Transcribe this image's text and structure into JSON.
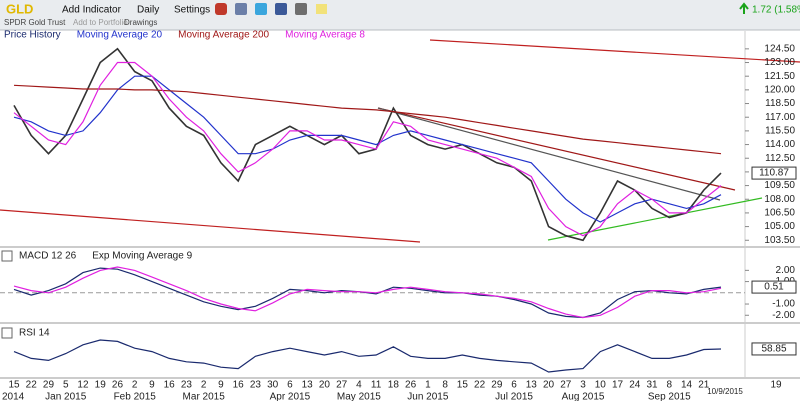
{
  "toolbar": {
    "symbol": "GLD",
    "add_indicator": "Add Indicator",
    "interval": "Daily",
    "settings": "Settings",
    "change": "1.72 (1.58%)",
    "name": "SPDR Gold Trust",
    "add_to_portfolio": "Add to Portfolio",
    "drawings": "Drawings"
  },
  "chart_data": [
    {
      "type": "line",
      "legend_title": "Price History",
      "categories": [
        "15",
        "22",
        "29",
        "5",
        "12",
        "19",
        "26",
        "2",
        "9",
        "16",
        "23",
        "2",
        "9",
        "16",
        "23",
        "30",
        "6",
        "13",
        "20",
        "27",
        "4",
        "11",
        "18",
        "26",
        "1",
        "8",
        "15",
        "22",
        "29",
        "6",
        "13",
        "20",
        "27",
        "3",
        "10",
        "17",
        "24",
        "31",
        "8",
        "14",
        "21",
        "10/9/2015"
      ],
      "months": [
        "2014",
        "Jan 2015",
        "Feb 2015",
        "Mar 2015",
        "Apr 2015",
        "May 2015",
        "Jun 2015",
        "Jul 2015",
        "Aug 2015",
        "Sep 2015"
      ],
      "next_tick": "19",
      "series": [
        {
          "name": "Price History",
          "color": "#333333",
          "values": [
            118.3,
            115,
            113,
            115,
            119,
            123,
            124.5,
            122,
            121,
            118,
            116,
            115,
            112,
            110,
            114,
            115,
            116,
            115,
            114,
            115,
            113,
            113.5,
            118,
            115,
            114,
            113.5,
            114,
            113,
            112,
            111.5,
            110,
            105,
            104,
            103.5,
            106.5,
            110,
            109,
            107,
            106,
            106.5,
            109,
            110.87
          ]
        },
        {
          "name": "Moving Average 20",
          "color": "#2233cc",
          "values": [
            117,
            116.5,
            115.5,
            115,
            115.5,
            117.5,
            120,
            121.5,
            121.5,
            120,
            118.5,
            117,
            115,
            113,
            113,
            113.5,
            114.5,
            115,
            115,
            115,
            114.5,
            114,
            115,
            115.5,
            115,
            114.5,
            114,
            113.5,
            113,
            112.5,
            112,
            110,
            108,
            106.5,
            105.5,
            106.5,
            107.5,
            108,
            107.5,
            107,
            107.5,
            108.5
          ]
        },
        {
          "name": "Moving Average 200",
          "color": "#a01818",
          "values": [
            120.5,
            120.4,
            120.3,
            120.2,
            120.1,
            120.1,
            120.1,
            120,
            120,
            119.9,
            119.8,
            119.6,
            119.4,
            119.2,
            119,
            118.8,
            118.6,
            118.4,
            118.2,
            118,
            117.9,
            117.8,
            117.6,
            117.4,
            117.2,
            117,
            116.7,
            116.4,
            116.1,
            115.8,
            115.5,
            115.2,
            114.9,
            114.6,
            114.4,
            114.2,
            114,
            113.8,
            113.6,
            113.4,
            113.2,
            113
          ]
        },
        {
          "name": "Moving Average 8",
          "color": "#e020e0",
          "values": [
            117.5,
            116,
            114.5,
            114,
            116.5,
            120.5,
            123,
            123,
            121.5,
            119,
            117,
            115.5,
            113,
            111,
            112,
            113.5,
            115.5,
            115.5,
            114.5,
            114.5,
            114,
            113.5,
            116.5,
            116,
            114.5,
            114,
            113.5,
            113,
            112.5,
            111.5,
            110.5,
            107,
            105,
            104,
            105,
            107.5,
            109,
            108,
            106.5,
            106.5,
            108,
            109.5
          ]
        }
      ],
      "ylim": [
        103.2,
        125.8
      ],
      "yticks": [
        {
          "value": 124.5,
          "label": "124.50"
        },
        {
          "value": 123,
          "label": "123.00"
        },
        {
          "value": 121.5,
          "label": "121.50"
        },
        {
          "value": 120,
          "label": "120.00"
        },
        {
          "value": 118.5,
          "label": "118.50"
        },
        {
          "value": 117,
          "label": "117.00"
        },
        {
          "value": 115.5,
          "label": "115.50"
        },
        {
          "value": 114,
          "label": "114.00"
        },
        {
          "value": 112.5,
          "label": "112.50"
        },
        {
          "value": 111,
          "label": "111.00"
        },
        {
          "value": 109.5,
          "label": "109.50"
        },
        {
          "value": 108,
          "label": "108.00"
        },
        {
          "value": 106.5,
          "label": "106.50"
        },
        {
          "value": 105,
          "label": "105.00"
        },
        {
          "value": 103.5,
          "label": "103.50"
        }
      ]
    },
    {
      "type": "line",
      "series": [
        {
          "name": "MACD 12 26",
          "color": "#1a2a6e",
          "values": [
            0.3,
            -0.2,
            0.2,
            0.8,
            1.8,
            2.2,
            2.1,
            1.6,
            1.0,
            0.4,
            -0.2,
            -0.8,
            -1.2,
            -1.5,
            -1.2,
            -0.5,
            0.3,
            0.2,
            0.0,
            0.2,
            0.1,
            -0.1,
            0.5,
            0.4,
            0.2,
            0.0,
            0.0,
            -0.2,
            -0.3,
            -0.6,
            -1.0,
            -1.8,
            -2.1,
            -2.2,
            -1.8,
            -0.6,
            0.1,
            0.2,
            0.0,
            -0.1,
            0.3,
            0.51
          ]
        },
        {
          "name": "Exp Moving Average 9",
          "color": "#e020e0",
          "values": [
            0.6,
            0.2,
            0.0,
            0.5,
            1.3,
            2.0,
            2.3,
            2.0,
            1.4,
            0.8,
            0.2,
            -0.5,
            -1.0,
            -1.4,
            -1.6,
            -0.9,
            -0.1,
            0.3,
            0.2,
            0.1,
            0.1,
            0.0,
            0.3,
            0.5,
            0.3,
            0.1,
            0.0,
            -0.1,
            -0.3,
            -0.5,
            -0.8,
            -1.4,
            -1.9,
            -2.2,
            -2.0,
            -1.3,
            -0.3,
            0.2,
            0.2,
            0.0,
            0.1,
            0.4
          ]
        }
      ],
      "ylim": [
        -2.6,
        3.1
      ],
      "yticks": [
        {
          "value": 2,
          "label": "2.00"
        },
        {
          "value": 1,
          "label": "1.00"
        },
        {
          "value": -1,
          "label": "-1.00"
        },
        {
          "value": -2,
          "label": "-2.00"
        }
      ]
    },
    {
      "type": "line",
      "series": [
        {
          "name": "RSI 14",
          "color": "#1a2a6e",
          "values": [
            55,
            45,
            42,
            52,
            65,
            72,
            70,
            60,
            55,
            45,
            40,
            38,
            32,
            30,
            48,
            55,
            60,
            55,
            50,
            55,
            48,
            50,
            62,
            48,
            45,
            45,
            50,
            45,
            42,
            40,
            38,
            25,
            28,
            30,
            55,
            65,
            55,
            45,
            45,
            50,
            58,
            58.85
          ]
        }
      ]
    }
  ]
}
